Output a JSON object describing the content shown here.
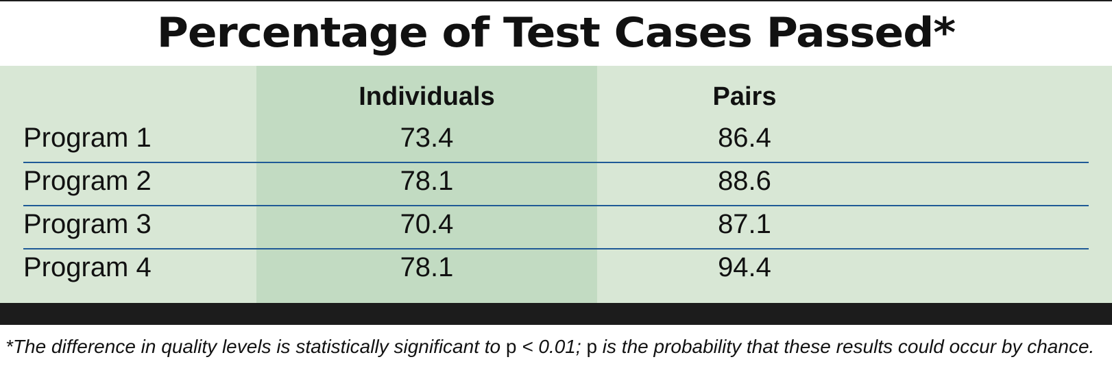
{
  "chart_data": {
    "type": "table",
    "title": "Percentage of Test Cases Passed*",
    "columns": [
      "",
      "Individuals",
      "Pairs"
    ],
    "rows": [
      {
        "label": "Program 1",
        "individuals": "73.4",
        "pairs": "86.4"
      },
      {
        "label": "Program 2",
        "individuals": "78.1",
        "pairs": "88.6"
      },
      {
        "label": "Program 3",
        "individuals": "70.4",
        "pairs": "87.1"
      },
      {
        "label": "Program 4",
        "individuals": "78.1",
        "pairs": "94.4"
      }
    ],
    "footnote": {
      "part1": "*The difference in quality levels is statistically significant to ",
      "p1": "p",
      "part2": " < 0.01; ",
      "p2": "p",
      "part3": " is the probability that these results could occur by chance."
    }
  },
  "colors": {
    "panel": "#d8e7d5",
    "highlight_column": "#c2dbc2",
    "divider": "#1f5a96",
    "bar": "#1c1c1c"
  }
}
